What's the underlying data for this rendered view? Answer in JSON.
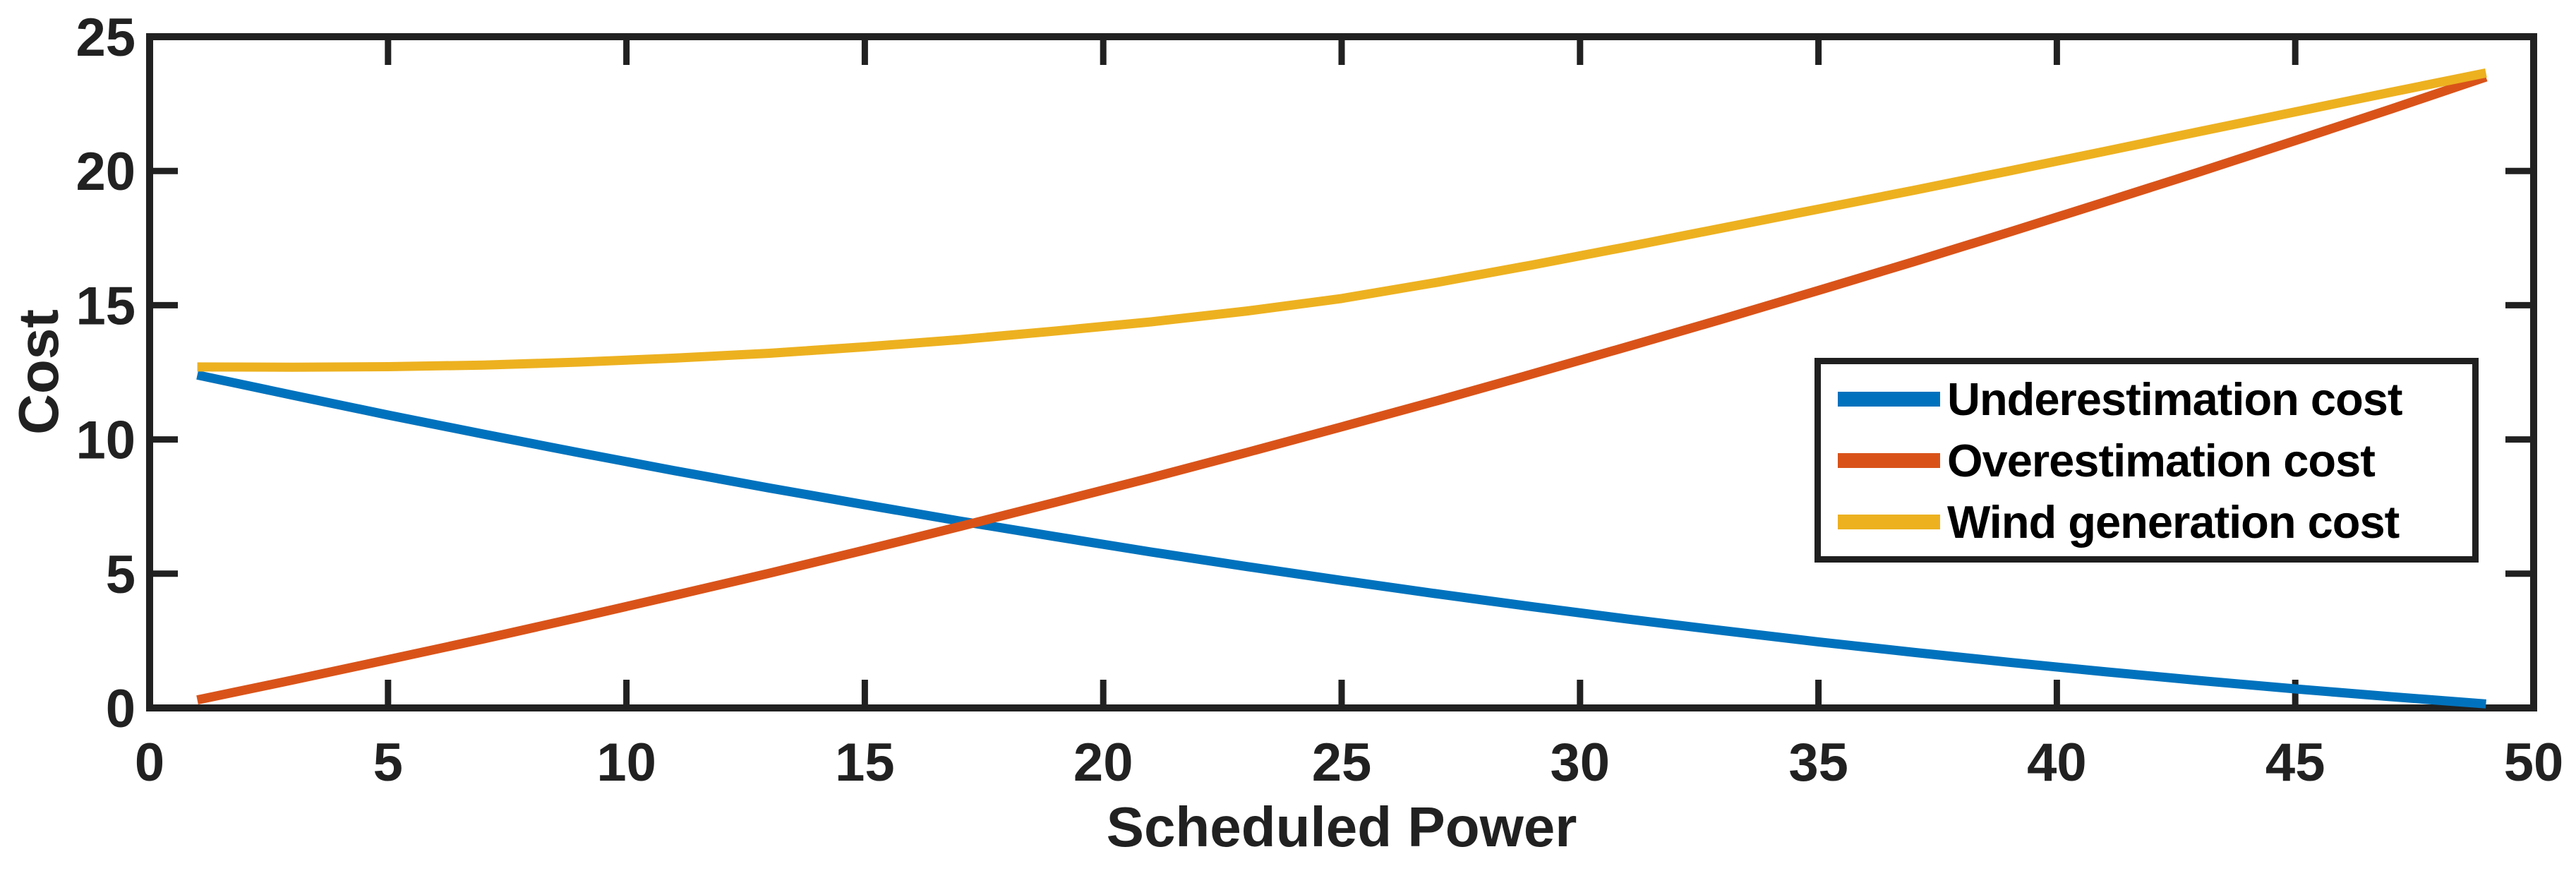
{
  "chart_data": {
    "type": "line",
    "title": "",
    "xlabel": "Scheduled Power",
    "ylabel": "Cost",
    "xlim": [
      0,
      50
    ],
    "ylim": [
      0,
      25
    ],
    "xticks": [
      0,
      5,
      10,
      15,
      20,
      25,
      30,
      35,
      40,
      45,
      50
    ],
    "yticks": [
      0,
      5,
      10,
      15,
      20,
      25
    ],
    "grid": false,
    "background": "#FFFFFF",
    "axis_color": "#212121",
    "legend_position": "inside-right-middle",
    "legend_border_color": "#1F1F1F",
    "x": [
      1,
      3,
      5,
      7,
      9,
      11,
      13,
      15,
      17,
      19,
      21,
      23,
      25,
      27,
      29,
      31,
      33,
      35,
      37,
      39,
      41,
      43,
      45,
      47,
      49
    ],
    "series": [
      {
        "name": "Underestimation cost",
        "color": "#0072BD",
        "values": [
          12.4,
          11.65,
          10.91,
          10.2,
          9.51,
          8.84,
          8.19,
          7.57,
          6.96,
          6.38,
          5.81,
          5.27,
          4.75,
          4.25,
          3.77,
          3.31,
          2.88,
          2.46,
          2.07,
          1.7,
          1.35,
          1.02,
          0.71,
          0.42,
          0.15
        ]
      },
      {
        "name": "Overestimation cost",
        "color": "#D95319",
        "values": [
          0.3,
          1.04,
          1.8,
          2.57,
          3.37,
          4.19,
          5.02,
          5.88,
          6.76,
          7.66,
          8.57,
          9.51,
          10.47,
          11.44,
          12.44,
          13.46,
          14.49,
          15.55,
          16.62,
          17.72,
          18.84,
          19.97,
          21.13,
          22.3,
          23.5
        ]
      },
      {
        "name": "Wind generation cost",
        "color": "#EDB120",
        "values": [
          12.7,
          12.69,
          12.71,
          12.77,
          12.88,
          13.03,
          13.21,
          13.45,
          13.72,
          14.04,
          14.38,
          14.78,
          15.25,
          15.85,
          16.5,
          17.18,
          17.88,
          18.58,
          19.28,
          20.0,
          20.73,
          21.47,
          22.2,
          22.93,
          23.65
        ]
      }
    ]
  }
}
